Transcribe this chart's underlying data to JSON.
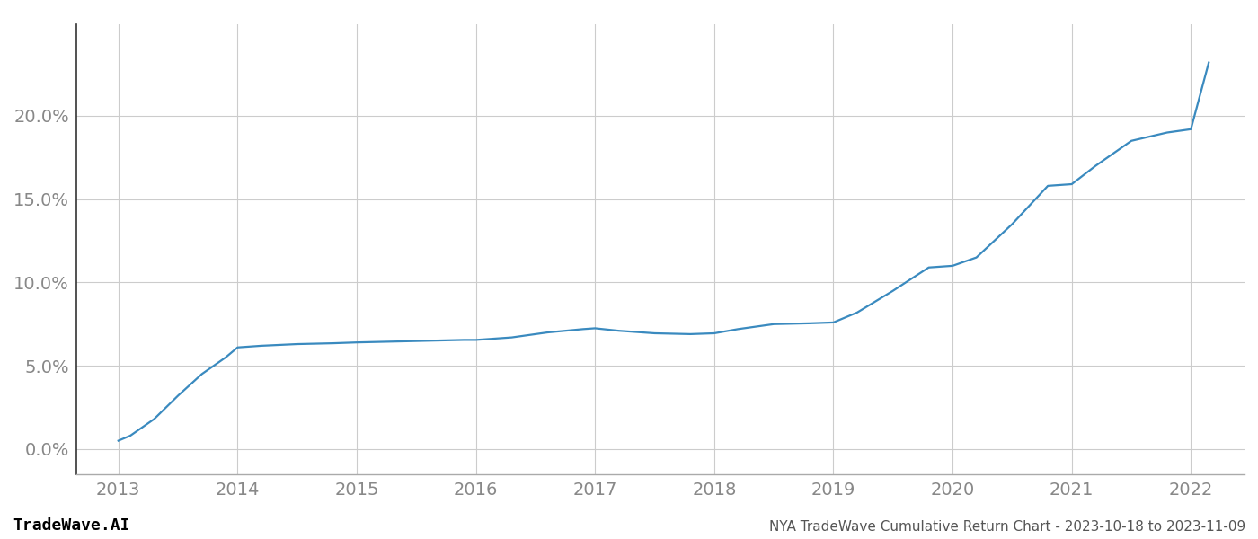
{
  "title": "",
  "footer_left": "TradeWave.AI",
  "footer_right": "NYA TradeWave Cumulative Return Chart - 2023-10-18 to 2023-11-09",
  "line_color": "#3a8abf",
  "background_color": "#ffffff",
  "grid_color": "#cccccc",
  "x_values": [
    2013.0,
    2013.1,
    2013.3,
    2013.5,
    2013.7,
    2013.9,
    2014.0,
    2014.2,
    2014.5,
    2014.8,
    2015.0,
    2015.3,
    2015.6,
    2015.9,
    2016.0,
    2016.3,
    2016.6,
    2016.9,
    2017.0,
    2017.2,
    2017.5,
    2017.8,
    2018.0,
    2018.2,
    2018.5,
    2018.8,
    2019.0,
    2019.2,
    2019.5,
    2019.8,
    2020.0,
    2020.2,
    2020.5,
    2020.8,
    2021.0,
    2021.2,
    2021.5,
    2021.8,
    2022.0,
    2022.15
  ],
  "y_values": [
    0.5,
    0.8,
    1.8,
    3.2,
    4.5,
    5.5,
    6.1,
    6.2,
    6.3,
    6.35,
    6.4,
    6.45,
    6.5,
    6.55,
    6.55,
    6.7,
    7.0,
    7.2,
    7.25,
    7.1,
    6.95,
    6.9,
    6.95,
    7.2,
    7.5,
    7.55,
    7.6,
    8.2,
    9.5,
    10.9,
    11.0,
    11.5,
    13.5,
    15.8,
    15.9,
    17.0,
    18.5,
    19.0,
    19.2,
    23.2
  ],
  "xlim": [
    2012.65,
    2022.45
  ],
  "ylim": [
    -1.5,
    25.5
  ],
  "yticks": [
    0.0,
    5.0,
    10.0,
    15.0,
    20.0
  ],
  "xticks": [
    2013,
    2014,
    2015,
    2016,
    2017,
    2018,
    2019,
    2020,
    2021,
    2022
  ],
  "tick_label_color": "#888888",
  "footer_left_color": "#000000",
  "footer_right_color": "#555555",
  "line_width": 1.6,
  "spine_color": "#aaaaaa",
  "left_spine_color": "#333333"
}
